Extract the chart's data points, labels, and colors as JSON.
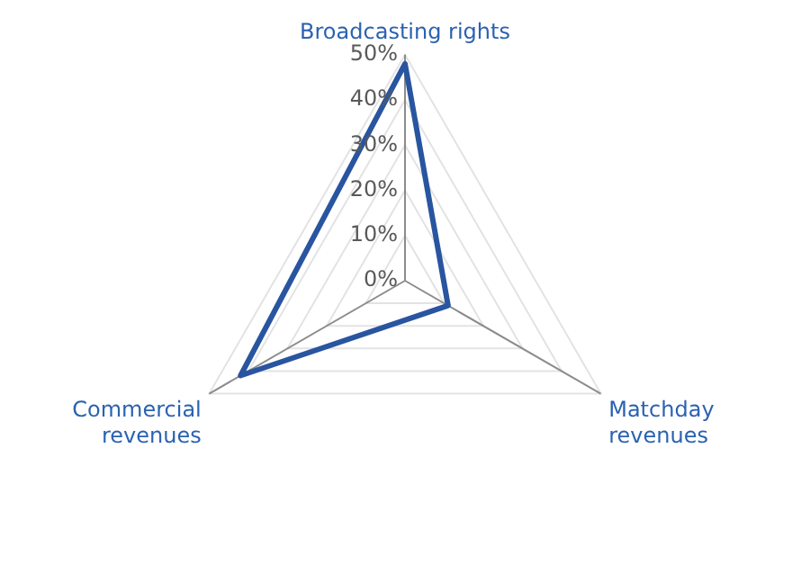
{
  "chart_data": {
    "type": "radar",
    "categories": [
      "Broadcasting rights",
      "Matchday revenues",
      "Commercial revenues"
    ],
    "series": [
      {
        "color": "#2955a0",
        "values": [
          48,
          11,
          42
        ]
      }
    ],
    "ylim": [
      0,
      50
    ],
    "yticks": [
      {
        "value": 0,
        "label": "0%"
      },
      {
        "value": 10,
        "label": "10%"
      },
      {
        "value": 20,
        "label": "20%"
      },
      {
        "value": 30,
        "label": "30%"
      },
      {
        "value": 40,
        "label": "40%"
      },
      {
        "value": 50,
        "label": "50%"
      }
    ],
    "grid": true,
    "legend": false,
    "marker": "none"
  }
}
